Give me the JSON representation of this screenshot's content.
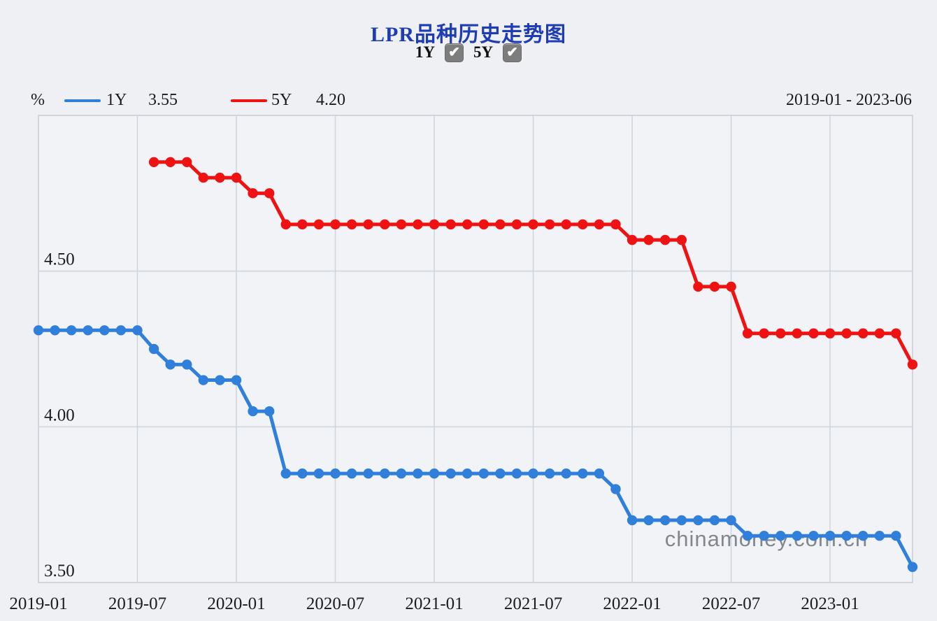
{
  "title": "LPR品种历史走势图",
  "controls": {
    "items": [
      {
        "label": "1Y",
        "checked": true
      },
      {
        "label": "5Y",
        "checked": true
      }
    ]
  },
  "legend": {
    "unit": "%",
    "series": [
      {
        "label": "1Y",
        "value": "3.55"
      },
      {
        "label": "5Y",
        "value": "4.20"
      }
    ],
    "date_range": "2019-01 - 2023-06"
  },
  "watermark": "chinamoney.com.cn",
  "colors": {
    "series_1y": "#2f7fdb",
    "series_5y": "#ee1212",
    "title": "#1e3cb4",
    "grid": "#ced4dd",
    "plot_border": "#c5cbd5",
    "plot_bg": "#f1f3f6",
    "page_bg": "#eef0f3",
    "tick_text": "#1c1c1c",
    "watermark": "#555a62"
  },
  "chart_data": {
    "type": "line",
    "title": "LPR品种历史走势图",
    "xlabel": "",
    "ylabel": "%",
    "ylim": [
      3.5,
      5.0
    ],
    "grid": true,
    "legend_position": "top",
    "x": [
      "2019-01",
      "2019-02",
      "2019-03",
      "2019-04",
      "2019-05",
      "2019-06",
      "2019-07",
      "2019-08",
      "2019-09",
      "2019-10",
      "2019-11",
      "2019-12",
      "2020-01",
      "2020-02",
      "2020-03",
      "2020-04",
      "2020-05",
      "2020-06",
      "2020-07",
      "2020-08",
      "2020-09",
      "2020-10",
      "2020-11",
      "2020-12",
      "2021-01",
      "2021-02",
      "2021-03",
      "2021-04",
      "2021-05",
      "2021-06",
      "2021-07",
      "2021-08",
      "2021-09",
      "2021-10",
      "2021-11",
      "2021-12",
      "2022-01",
      "2022-02",
      "2022-03",
      "2022-04",
      "2022-05",
      "2022-06",
      "2022-07",
      "2022-08",
      "2022-09",
      "2022-10",
      "2022-11",
      "2022-12",
      "2023-01",
      "2023-02",
      "2023-03",
      "2023-04",
      "2023-05",
      "2023-06"
    ],
    "x_tick_labels": [
      "2019-01",
      "2019-07",
      "2020-01",
      "2020-07",
      "2021-01",
      "2021-07",
      "2022-01",
      "2022-07",
      "2023-01"
    ],
    "y_ticks": [
      {
        "value": 4.5,
        "label": "4.50"
      },
      {
        "value": 4.0,
        "label": "4.00"
      },
      {
        "value": 3.5,
        "label": "3.50"
      }
    ],
    "series": [
      {
        "name": "1Y",
        "color": "#2f7fdb",
        "current": "3.55",
        "values": [
          4.31,
          4.31,
          4.31,
          4.31,
          4.31,
          4.31,
          4.31,
          4.25,
          4.2,
          4.2,
          4.15,
          4.15,
          4.15,
          4.05,
          4.05,
          3.85,
          3.85,
          3.85,
          3.85,
          3.85,
          3.85,
          3.85,
          3.85,
          3.85,
          3.85,
          3.85,
          3.85,
          3.85,
          3.85,
          3.85,
          3.85,
          3.85,
          3.85,
          3.85,
          3.85,
          3.8,
          3.7,
          3.7,
          3.7,
          3.7,
          3.7,
          3.7,
          3.7,
          3.65,
          3.65,
          3.65,
          3.65,
          3.65,
          3.65,
          3.65,
          3.65,
          3.65,
          3.65,
          3.55
        ]
      },
      {
        "name": "5Y",
        "color": "#ee1212",
        "current": "4.20",
        "values": [
          null,
          null,
          null,
          null,
          null,
          null,
          null,
          4.85,
          4.85,
          4.85,
          4.8,
          4.8,
          4.8,
          4.75,
          4.75,
          4.65,
          4.65,
          4.65,
          4.65,
          4.65,
          4.65,
          4.65,
          4.65,
          4.65,
          4.65,
          4.65,
          4.65,
          4.65,
          4.65,
          4.65,
          4.65,
          4.65,
          4.65,
          4.65,
          4.65,
          4.65,
          4.6,
          4.6,
          4.6,
          4.6,
          4.45,
          4.45,
          4.45,
          4.3,
          4.3,
          4.3,
          4.3,
          4.3,
          4.3,
          4.3,
          4.3,
          4.3,
          4.3,
          4.2
        ]
      }
    ]
  }
}
